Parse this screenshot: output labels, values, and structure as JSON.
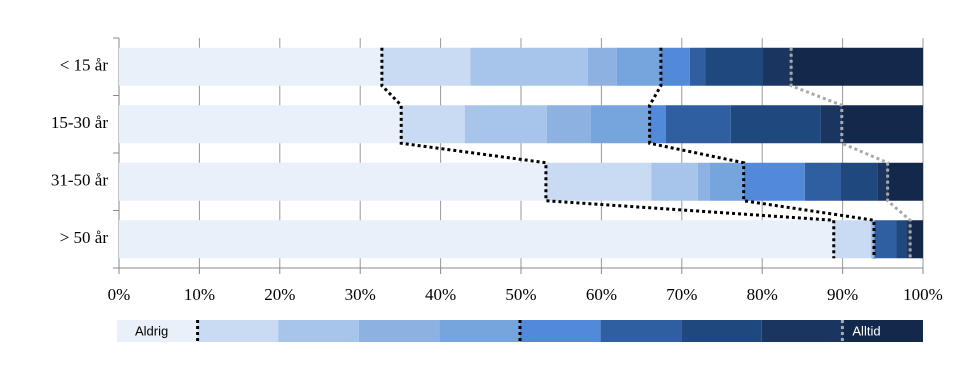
{
  "chart_data": {
    "type": "stacked-bar-horizontal",
    "categories": [
      "< 15 år",
      "15-30 år",
      "31-50 år",
      "> 50 år"
    ],
    "xlim": [
      0,
      100
    ],
    "xticks": [
      {
        "value": 0,
        "label": "0%"
      },
      {
        "value": 10,
        "label": "10%"
      },
      {
        "value": 20,
        "label": "20%"
      },
      {
        "value": 30,
        "label": "30%"
      },
      {
        "value": 40,
        "label": "40%"
      },
      {
        "value": 50,
        "label": "50%"
      },
      {
        "value": 60,
        "label": "60%"
      },
      {
        "value": 70,
        "label": "70%"
      },
      {
        "value": 80,
        "label": "80%"
      },
      {
        "value": 90,
        "label": "90%"
      },
      {
        "value": 100,
        "label": "100%"
      }
    ],
    "grid": true,
    "series": [
      {
        "name": "Aldrig",
        "color": "#e9f0fa",
        "values": [
          32.7,
          35.1,
          53.1,
          88.9
        ]
      },
      {
        "name": null,
        "color": "#c9dbf2",
        "values": [
          11.0,
          7.9,
          13.1,
          4.6
        ]
      },
      {
        "name": null,
        "color": "#a7c5ea",
        "values": [
          14.6,
          10.2,
          5.8,
          0.2
        ]
      },
      {
        "name": null,
        "color": "#8db2e2",
        "values": [
          3.6,
          5.5,
          1.5,
          0.1
        ]
      },
      {
        "name": null,
        "color": "#76a5de",
        "values": [
          5.5,
          7.3,
          4.2,
          0.1
        ]
      },
      {
        "name": null,
        "color": "#5289d8",
        "values": [
          3.6,
          2.0,
          7.6,
          0.1
        ]
      },
      {
        "name": null,
        "color": "#2f5fa0",
        "values": [
          1.9,
          8.1,
          4.5,
          2.7
        ]
      },
      {
        "name": null,
        "color": "#1f487e",
        "values": [
          7.2,
          11.2,
          4.5,
          1.2
        ]
      },
      {
        "name": null,
        "color": "#1a3560",
        "values": [
          3.5,
          2.6,
          1.3,
          0.5
        ]
      },
      {
        "name": "Alltid",
        "color": "#13294b",
        "values": [
          16.4,
          10.1,
          4.4,
          1.6
        ]
      }
    ]
  }
}
